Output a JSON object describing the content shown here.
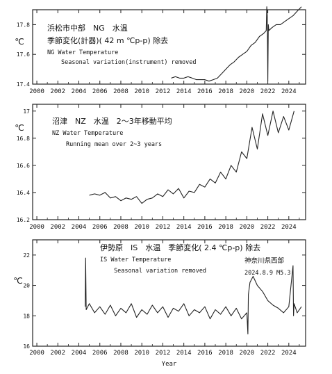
{
  "chart_data": [
    {
      "type": "line",
      "title": "浜松市中部　NG　水温",
      "subtitle_jp": "季節変化(計器)( 42 m ℃p-p) 除去",
      "subtitle_en_1": "NG  Water Temperature",
      "subtitle_en_2": "Seasonal variation(instrument) removed",
      "ylabel": "℃",
      "xlabel": "",
      "xlim": [
        1999.6,
        2025.6
      ],
      "ylim": [
        17.4,
        17.9
      ],
      "x_ticks": [
        "2000",
        "2002",
        "2004",
        "2006",
        "2008",
        "2010",
        "2012",
        "2014",
        "2016",
        "2018",
        "2020",
        "2022",
        "2024"
      ],
      "y_ticks": [
        "17.4",
        "17.6",
        "17.8"
      ],
      "series": [
        {
          "x": [
            2012.8,
            2013.2,
            2013.6,
            2014.0,
            2014.4,
            2014.8,
            2015.2,
            2015.6,
            2016.0,
            2016.4,
            2016.8,
            2017.2,
            2017.6,
            2018.0,
            2018.4,
            2018.8,
            2019.2,
            2019.6,
            2020.0,
            2020.4,
            2020.8,
            2021.2,
            2021.6,
            2021.85,
            2021.9,
            2021.95,
            2022.0,
            2022.05,
            2022.1,
            2022.4,
            2022.8,
            2023.2,
            2023.6,
            2024.0,
            2024.4,
            2024.8,
            2025.2
          ],
          "y": [
            17.44,
            17.45,
            17.44,
            17.44,
            17.45,
            17.44,
            17.43,
            17.43,
            17.43,
            17.42,
            17.43,
            17.44,
            17.47,
            17.5,
            17.53,
            17.55,
            17.58,
            17.6,
            17.62,
            17.66,
            17.68,
            17.72,
            17.74,
            17.76,
            17.92,
            17.86,
            17.42,
            17.8,
            17.76,
            17.78,
            17.8,
            17.8,
            17.82,
            17.84,
            17.86,
            17.89,
            17.92
          ]
        }
      ]
    },
    {
      "type": "line",
      "title": "沼津　NZ　水温　2〜3年移動平均",
      "subtitle_en_1": "NZ  Water Temperature",
      "subtitle_en_2": "Running mean over 2~3 years",
      "ylabel": "℃",
      "xlabel": "",
      "xlim": [
        1999.6,
        2025.6
      ],
      "ylim": [
        16.2,
        17.05
      ],
      "x_ticks": [
        "2000",
        "2002",
        "2004",
        "2006",
        "2008",
        "2010",
        "2012",
        "2014",
        "2016",
        "2018",
        "2020",
        "2022",
        "2024"
      ],
      "y_ticks": [
        "16.2",
        "16.4",
        "16.6",
        "16.8",
        "17"
      ],
      "series": [
        {
          "x": [
            2005.0,
            2005.5,
            2006.0,
            2006.5,
            2007.0,
            2007.5,
            2008.0,
            2008.5,
            2009.0,
            2009.5,
            2010.0,
            2010.5,
            2011.0,
            2011.5,
            2012.0,
            2012.5,
            2013.0,
            2013.5,
            2014.0,
            2014.5,
            2015.0,
            2015.5,
            2016.0,
            2016.5,
            2017.0,
            2017.5,
            2018.0,
            2018.5,
            2019.0,
            2019.5,
            2020.0,
            2020.5,
            2021.0,
            2021.5,
            2022.0,
            2022.5,
            2023.0,
            2023.5,
            2024.0,
            2024.5
          ],
          "y": [
            16.38,
            16.39,
            16.38,
            16.4,
            16.36,
            16.37,
            16.34,
            16.36,
            16.35,
            16.37,
            16.32,
            16.35,
            16.36,
            16.39,
            16.37,
            16.42,
            16.39,
            16.43,
            16.36,
            16.41,
            16.4,
            16.46,
            16.44,
            16.5,
            16.47,
            16.55,
            16.5,
            16.6,
            16.55,
            16.7,
            16.65,
            16.88,
            16.72,
            16.98,
            16.82,
            17.0,
            16.84,
            16.96,
            16.86,
            17.0
          ]
        }
      ]
    },
    {
      "type": "line",
      "title": "伊勢原　IS　水温　季節変化( 2.4 ℃p-p) 除去",
      "subtitle_en_1": "IS  Water Temperature",
      "subtitle_en_2": "Seasonal variation removed",
      "annotation_1": "神奈川県西部",
      "annotation_2": "2024.8.9  M5.3",
      "ylabel": "℃",
      "xlabel": "Year",
      "xlim": [
        1999.6,
        2025.6
      ],
      "ylim": [
        16.0,
        23.0
      ],
      "x_ticks": [
        "2000",
        "2002",
        "2004",
        "2006",
        "2008",
        "2010",
        "2012",
        "2014",
        "2016",
        "2018",
        "2020",
        "2022",
        "2024"
      ],
      "y_ticks": [
        "16",
        "18",
        "20",
        "22"
      ],
      "series": [
        {
          "x": [
            2004.6,
            2004.65,
            2004.7,
            2005.0,
            2005.5,
            2006.0,
            2006.5,
            2007.0,
            2007.5,
            2008.0,
            2008.5,
            2009.0,
            2009.5,
            2010.0,
            2010.5,
            2011.0,
            2011.5,
            2012.0,
            2012.5,
            2013.0,
            2013.5,
            2014.0,
            2014.5,
            2015.0,
            2015.5,
            2016.0,
            2016.5,
            2017.0,
            2017.5,
            2018.0,
            2018.5,
            2019.0,
            2019.5,
            2020.0,
            2020.1,
            2020.15,
            2020.3,
            2020.6,
            2021.0,
            2021.5,
            2022.0,
            2022.5,
            2023.0,
            2023.5,
            2024.0,
            2024.4,
            2024.45,
            2024.5,
            2024.8,
            2025.2
          ],
          "y": [
            18.6,
            21.8,
            18.4,
            18.8,
            18.2,
            18.6,
            18.1,
            18.7,
            18.0,
            18.5,
            18.2,
            18.8,
            17.9,
            18.4,
            18.1,
            18.7,
            18.2,
            18.6,
            17.9,
            18.5,
            18.3,
            18.8,
            18.0,
            18.4,
            18.2,
            18.6,
            17.8,
            18.4,
            18.1,
            18.6,
            18.0,
            18.5,
            17.8,
            18.2,
            16.8,
            19.4,
            20.2,
            20.6,
            20.0,
            19.6,
            19.0,
            18.7,
            18.5,
            18.2,
            18.6,
            21.3,
            18.0,
            18.8,
            18.2,
            18.6
          ]
        }
      ]
    }
  ]
}
